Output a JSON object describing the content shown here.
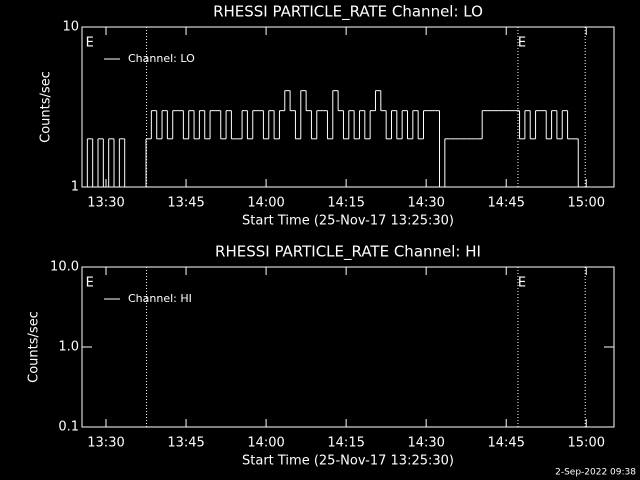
{
  "chart_data": [
    {
      "type": "line",
      "title": "RHESSI PARTICLE_RATE Channel: LO",
      "x_label": "Start Time (25-Nov-17 13:25:30)",
      "y_label": "Counts/sec",
      "log_y": true,
      "ylim": [
        1,
        10
      ],
      "yticks": [
        1,
        10
      ],
      "xlim": [
        805.5,
        905.2
      ],
      "xticks": [
        {
          "value": 810,
          "label": "13:30"
        },
        {
          "value": 825,
          "label": "13:45"
        },
        {
          "value": 840,
          "label": "14:00"
        },
        {
          "value": 855,
          "label": "14:15"
        },
        {
          "value": 870,
          "label": "14:30"
        },
        {
          "value": 885,
          "label": "14:45"
        },
        {
          "value": 900,
          "label": "15:00"
        }
      ],
      "event_lines": [
        817.6,
        887.2,
        899.8
      ],
      "annotations": [
        {
          "text": "E",
          "x": 806.2
        },
        {
          "text": "E",
          "x": 887.2
        }
      ],
      "series": [
        {
          "name": "Channel: LO",
          "color": "#ffffff",
          "x": [
            806,
            807,
            808,
            809,
            810,
            811,
            812,
            813,
            814,
            815,
            816,
            817,
            818,
            819,
            820,
            821,
            822,
            823,
            824,
            825,
            826,
            827,
            828,
            829,
            830,
            831,
            832,
            833,
            834,
            835,
            836,
            837,
            838,
            839,
            840,
            841,
            842,
            843,
            844,
            845,
            846,
            847,
            848,
            849,
            850,
            851,
            852,
            853,
            854,
            855,
            856,
            857,
            858,
            859,
            860,
            861,
            862,
            863,
            864,
            865,
            866,
            867,
            868,
            869,
            870,
            871,
            872,
            873,
            874,
            875,
            876,
            877,
            878,
            879,
            880,
            881,
            882,
            883,
            884,
            885,
            886,
            887,
            888,
            889,
            890,
            891,
            892,
            893,
            894,
            895,
            896,
            897,
            898,
            899
          ],
          "values": [
            1,
            2,
            1,
            2,
            1,
            2,
            1,
            2,
            1,
            1,
            1,
            1,
            2,
            3,
            2,
            3,
            2,
            3,
            3,
            2,
            3,
            2,
            3,
            2,
            3,
            3,
            2,
            3,
            2,
            2,
            3,
            2,
            3,
            3,
            2,
            3,
            2,
            3,
            4,
            3,
            2,
            4,
            3,
            2,
            3,
            3,
            2,
            4,
            3,
            2,
            3,
            2,
            3,
            2,
            3,
            4,
            3,
            2,
            3,
            2,
            3,
            2,
            3,
            2,
            3,
            3,
            3,
            1,
            2,
            2,
            2,
            2,
            2,
            2,
            2,
            3,
            3,
            3,
            3,
            3,
            3,
            3,
            2,
            3,
            2,
            3,
            3,
            2,
            3,
            2,
            3,
            2,
            2,
            1
          ]
        }
      ]
    },
    {
      "type": "line",
      "title": "RHESSI PARTICLE_RATE Channel: HI",
      "x_label": "Start Time (25-Nov-17 13:25:30)",
      "y_label": "Counts/sec",
      "log_y": true,
      "ylim": [
        0.1,
        10
      ],
      "yticks": [
        {
          "value": 0.1,
          "label": "0.1"
        },
        {
          "value": 1,
          "label": "1.0"
        },
        {
          "value": 10,
          "label": "10.0"
        }
      ],
      "xlim": [
        805.5,
        905.2
      ],
      "xticks": [
        {
          "value": 810,
          "label": "13:30"
        },
        {
          "value": 825,
          "label": "13:45"
        },
        {
          "value": 840,
          "label": "14:00"
        },
        {
          "value": 855,
          "label": "14:15"
        },
        {
          "value": 870,
          "label": "14:30"
        },
        {
          "value": 885,
          "label": "14:45"
        },
        {
          "value": 900,
          "label": "15:00"
        }
      ],
      "event_lines": [
        817.6,
        887.2,
        899.8
      ],
      "annotations": [
        {
          "text": "E",
          "x": 806.2
        },
        {
          "text": "E",
          "x": 887.2
        }
      ],
      "series": [
        {
          "name": "Channel: HI",
          "color": "#ffffff",
          "x": [],
          "values": []
        }
      ]
    }
  ],
  "footer": "2-Sep-2022 09:38"
}
